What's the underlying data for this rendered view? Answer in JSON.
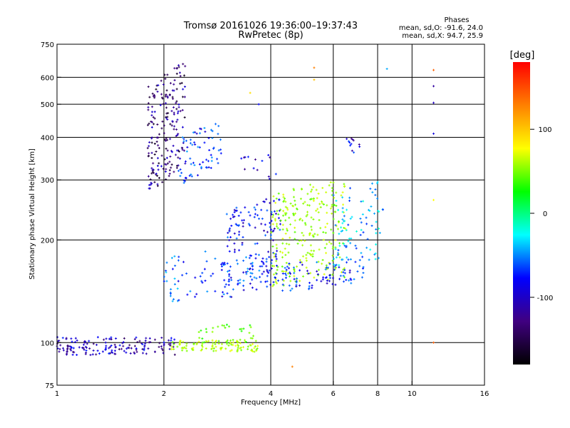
{
  "chart_data": {
    "type": "scatter",
    "title": "Tromsø 20161026 19:36:00–19:37:43",
    "subtitle": "RwPretec (8p)",
    "xlabel": "Frequency [MHz]",
    "ylabel": "Stationary phase Virtual Height [km]",
    "x_scale": "log",
    "y_scale": "log",
    "xlim": [
      1,
      16
    ],
    "ylim": [
      75,
      750
    ],
    "x_ticks": [
      1,
      2,
      4,
      6,
      8,
      10,
      16
    ],
    "x_tick_labels": [
      "1",
      "2",
      "4",
      "6",
      "8",
      "10",
      "16"
    ],
    "y_ticks": [
      75,
      100,
      200,
      300,
      400,
      500,
      600,
      750
    ],
    "y_tick_labels": [
      "75",
      "100",
      "200",
      "300",
      "400",
      "500",
      "600",
      "750"
    ],
    "grid": true,
    "stats": {
      "heading": "Phases",
      "line_o": "mean, sd,O: -91.6, 24.0",
      "line_x": "mean, sd,X:  94.7, 25.9"
    },
    "colorbar": {
      "label": "[deg]",
      "range": [
        -180,
        180
      ],
      "ticks": [
        100,
        0,
        -100
      ],
      "tick_labels": [
        "100",
        "0",
        "-100"
      ],
      "colors": [
        "#ff0000",
        "#ff8000",
        "#ffff00",
        "#00ff00",
        "#00ffff",
        "#0000ff",
        "#400080",
        "#000000"
      ]
    },
    "point_color_value": "phase",
    "clusters": [
      {
        "f0": 1.0,
        "f1": 2.15,
        "h0": 92,
        "h1": 104,
        "phase": -120,
        "n": 160,
        "slope": 0
      },
      {
        "f0": 2.1,
        "f1": 3.7,
        "h0": 94,
        "h1": 102,
        "phase": 70,
        "n": 110,
        "slope": 0
      },
      {
        "f0": 2.5,
        "f1": 3.6,
        "h0": 100,
        "h1": 113,
        "phase": 30,
        "n": 30,
        "slope": 0
      },
      {
        "f0": 1.8,
        "f1": 2.3,
        "h0": 300,
        "h1": 620,
        "phase": -140,
        "n": 200,
        "slope": 0.6
      },
      {
        "f0": 2.2,
        "f1": 2.9,
        "h0": 310,
        "h1": 430,
        "phase": -90,
        "n": 70,
        "slope": 0.5
      },
      {
        "f0": 2.0,
        "f1": 2.8,
        "h0": 135,
        "h1": 185,
        "phase": -80,
        "n": 45,
        "slope": 0.3
      },
      {
        "f0": 2.9,
        "f1": 4.2,
        "h0": 140,
        "h1": 180,
        "phase": -90,
        "n": 110,
        "slope": 0.3
      },
      {
        "f0": 3.0,
        "f1": 4.3,
        "h0": 190,
        "h1": 260,
        "phase": -100,
        "n": 90,
        "slope": 0.3
      },
      {
        "f0": 4.0,
        "f1": 6.5,
        "h0": 150,
        "h1": 290,
        "phase": 60,
        "n": 260,
        "slope": 0.2
      },
      {
        "f0": 4.3,
        "f1": 7.3,
        "h0": 145,
        "h1": 175,
        "phase": -95,
        "n": 90,
        "slope": 0.2
      },
      {
        "f0": 6.0,
        "f1": 8.3,
        "h0": 170,
        "h1": 290,
        "phase": -60,
        "n": 90,
        "slope": 0.3
      },
      {
        "f0": 3.3,
        "f1": 4.2,
        "h0": 300,
        "h1": 360,
        "phase": -110,
        "n": 14,
        "slope": 0
      },
      {
        "f0": 6.4,
        "f1": 7.2,
        "h0": 360,
        "h1": 400,
        "phase": -110,
        "n": 12,
        "slope": 0
      }
    ],
    "isolated_points": [
      {
        "x": 5.3,
        "y": 640,
        "phase": 140
      },
      {
        "x": 5.3,
        "y": 590,
        "phase": 120
      },
      {
        "x": 8.5,
        "y": 635,
        "phase": -60
      },
      {
        "x": 11.5,
        "y": 630,
        "phase": 150
      },
      {
        "x": 11.5,
        "y": 565,
        "phase": -130
      },
      {
        "x": 11.5,
        "y": 505,
        "phase": -120
      },
      {
        "x": 11.5,
        "y": 410,
        "phase": -110
      },
      {
        "x": 11.5,
        "y": 262,
        "phase": 100
      },
      {
        "x": 11.5,
        "y": 100,
        "phase": 150
      },
      {
        "x": 4.6,
        "y": 85,
        "phase": 140
      },
      {
        "x": 3.5,
        "y": 540,
        "phase": 110
      },
      {
        "x": 3.7,
        "y": 500,
        "phase": -100
      }
    ]
  }
}
